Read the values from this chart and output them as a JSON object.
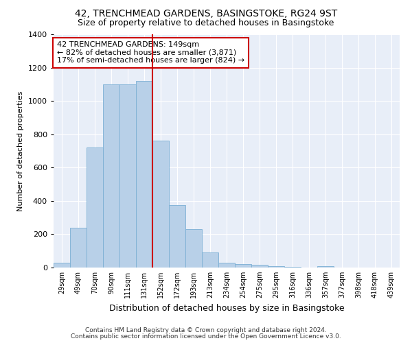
{
  "title1": "42, TRENCHMEAD GARDENS, BASINGSTOKE, RG24 9ST",
  "title2": "Size of property relative to detached houses in Basingstoke",
  "xlabel": "Distribution of detached houses by size in Basingstoke",
  "ylabel": "Number of detached properties",
  "categories": [
    "29sqm",
    "49sqm",
    "70sqm",
    "90sqm",
    "111sqm",
    "131sqm",
    "152sqm",
    "172sqm",
    "193sqm",
    "213sqm",
    "234sqm",
    "254sqm",
    "275sqm",
    "295sqm",
    "316sqm",
    "336sqm",
    "357sqm",
    "377sqm",
    "398sqm",
    "418sqm",
    "439sqm"
  ],
  "values": [
    30,
    240,
    720,
    1100,
    1100,
    1120,
    760,
    375,
    230,
    90,
    30,
    20,
    15,
    10,
    5,
    0,
    10,
    0,
    0,
    0,
    0
  ],
  "bar_color": "#b8d0e8",
  "bar_edge_color": "#7bafd4",
  "vline_color": "#cc0000",
  "annotation_text": "42 TRENCHMEAD GARDENS: 149sqm\n← 82% of detached houses are smaller (3,871)\n17% of semi-detached houses are larger (824) →",
  "annotation_box_color": "#ffffff",
  "annotation_box_edge": "#cc0000",
  "ylim": [
    0,
    1400
  ],
  "yticks": [
    0,
    200,
    400,
    600,
    800,
    1000,
    1200,
    1400
  ],
  "background_color": "#e8eef8",
  "grid_color": "#ffffff",
  "title1_fontsize": 10,
  "title2_fontsize": 9,
  "footer1": "Contains HM Land Registry data © Crown copyright and database right 2024.",
  "footer2": "Contains public sector information licensed under the Open Government Licence v3.0."
}
